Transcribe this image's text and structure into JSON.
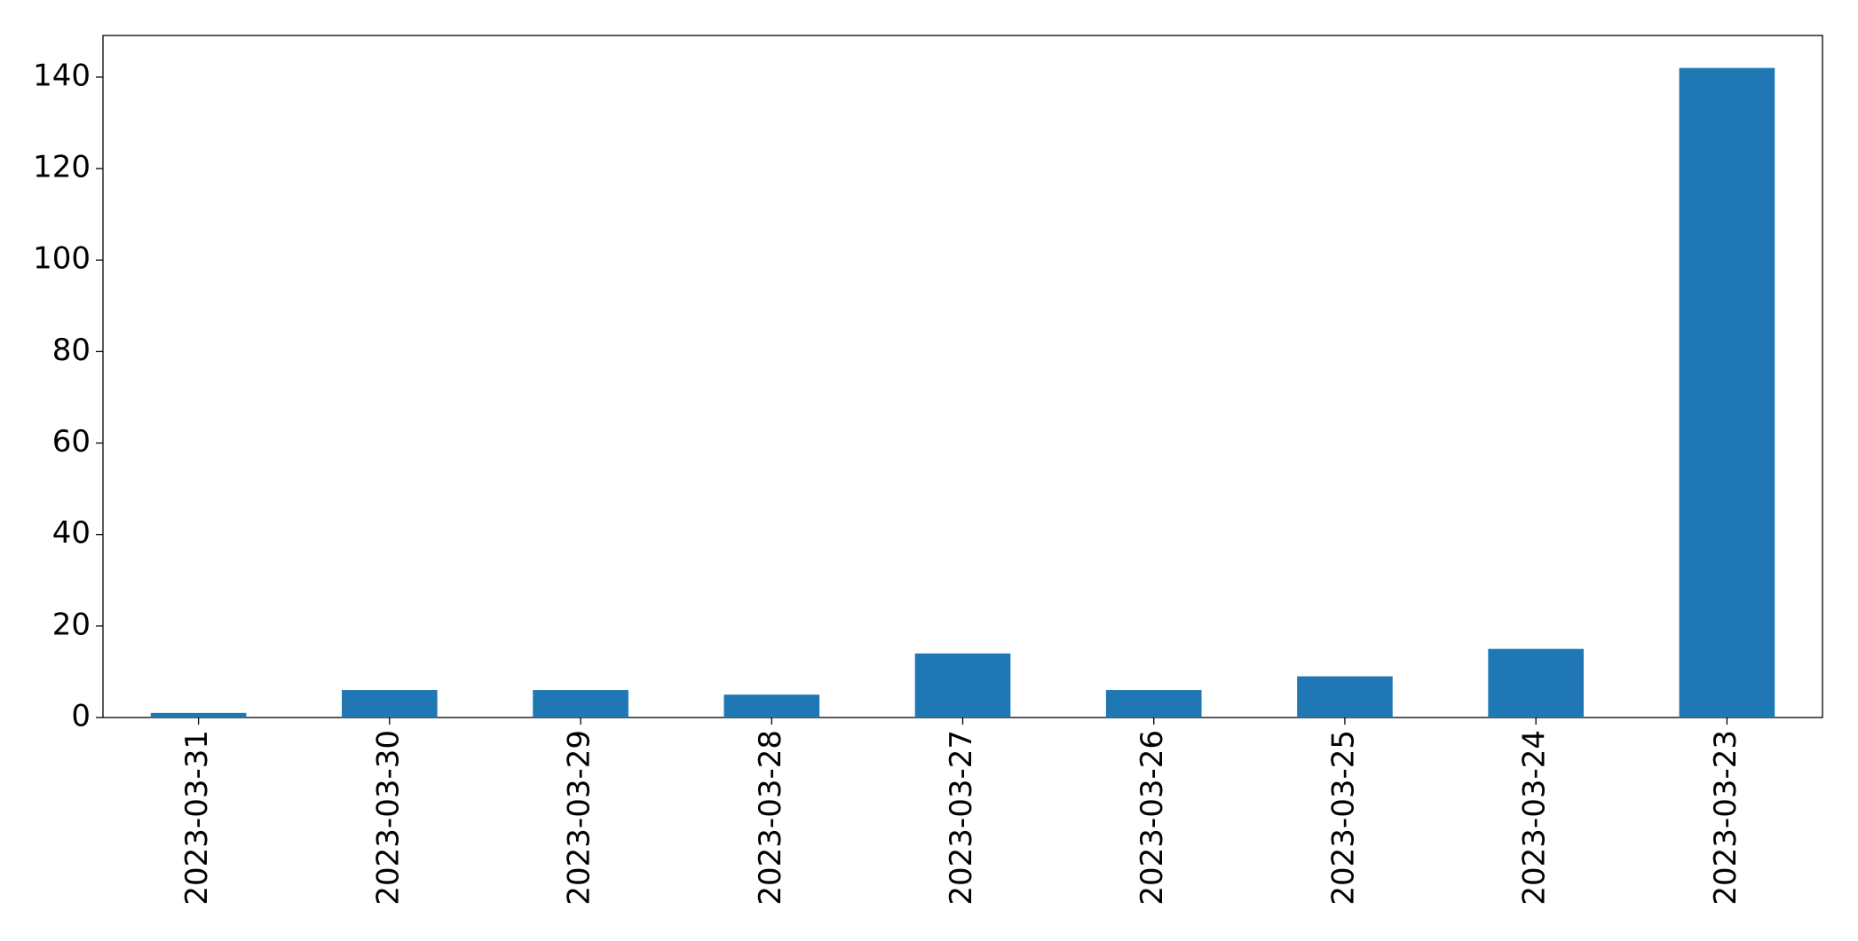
{
  "chart_data": {
    "type": "bar",
    "categories": [
      "2023-03-31",
      "2023-03-30",
      "2023-03-29",
      "2023-03-28",
      "2023-03-27",
      "2023-03-26",
      "2023-03-25",
      "2023-03-24",
      "2023-03-23"
    ],
    "values": [
      1,
      6,
      6,
      5,
      14,
      6,
      9,
      15,
      142
    ],
    "color": "#1f77b4",
    "ylim": [
      0,
      149.1
    ],
    "yticks": [
      0,
      20,
      40,
      60,
      80,
      100,
      120,
      140
    ],
    "grid": false
  }
}
